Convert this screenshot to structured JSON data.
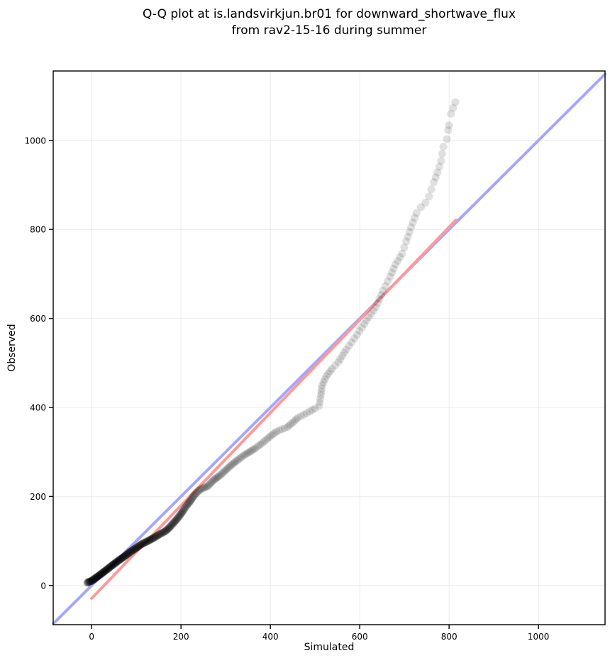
{
  "title": {
    "line1": "Q-Q plot at is.landsvirkjun.br01 for downward_shortwave_flux",
    "line2": "from rav2-15-16 during summer"
  },
  "chart_data": {
    "type": "scatter",
    "title": "Q-Q plot at is.landsvirkjun.br01 for downward_shortwave_flux from rav2-15-16 during summer",
    "xlabel": "Simulated",
    "ylabel": "Observed",
    "xlim": [
      -86,
      1149
    ],
    "ylim": [
      -88,
      1156
    ],
    "xticks": [
      0,
      200,
      400,
      600,
      800,
      1000
    ],
    "yticks": [
      0,
      200,
      400,
      600,
      800,
      1000
    ],
    "grid": true,
    "grid_color": "#ebebeb",
    "spine_color": "#000000",
    "legend": "none",
    "series": [
      {
        "name": "identity_line",
        "type": "line",
        "color": "#a6a6fa",
        "width": 4,
        "x": [
          -86,
          1149
        ],
        "y": [
          -86,
          1149
        ]
      },
      {
        "name": "fit_line",
        "type": "line",
        "color": "#fb9a9a",
        "width": 4,
        "x": [
          0,
          815
        ],
        "y": [
          -29,
          821
        ]
      },
      {
        "name": "qq_quantile_points",
        "type": "scatter",
        "color": "#000000",
        "point_alpha": 0.12,
        "point_radius": 5.5,
        "points": [
          [
            -10,
            6
          ],
          [
            -7,
            8
          ],
          [
            -3,
            9
          ],
          [
            1,
            11
          ],
          [
            5,
            14
          ],
          [
            12,
            19
          ],
          [
            20,
            25
          ],
          [
            33,
            35
          ],
          [
            47,
            46
          ],
          [
            60,
            56
          ],
          [
            73,
            65
          ],
          [
            86,
            75
          ],
          [
            99,
            84
          ],
          [
            112,
            93
          ],
          [
            126,
            100
          ],
          [
            139,
            107
          ],
          [
            152,
            115
          ],
          [
            165,
            122
          ],
          [
            174,
            130
          ],
          [
            181,
            138
          ],
          [
            190,
            148
          ],
          [
            197,
            157
          ],
          [
            203,
            165
          ],
          [
            208,
            173
          ],
          [
            213,
            180
          ],
          [
            218,
            186
          ],
          [
            224,
            194
          ],
          [
            229,
            202
          ],
          [
            236,
            209
          ],
          [
            242,
            215
          ],
          [
            252,
            220
          ],
          [
            260,
            223
          ],
          [
            273,
            237
          ],
          [
            287,
            247
          ],
          [
            300,
            259
          ],
          [
            313,
            271
          ],
          [
            327,
            282
          ],
          [
            340,
            292
          ],
          [
            353,
            300
          ],
          [
            366,
            308
          ],
          [
            378,
            317
          ],
          [
            390,
            327
          ],
          [
            402,
            337
          ],
          [
            414,
            346
          ],
          [
            426,
            351
          ],
          [
            438,
            356
          ],
          [
            450,
            366
          ],
          [
            462,
            377
          ],
          [
            475,
            384
          ],
          [
            488,
            391
          ],
          [
            500,
            398
          ],
          [
            509,
            403
          ],
          [
            513,
            428
          ],
          [
            516,
            450
          ],
          [
            525,
            470
          ],
          [
            538,
            487
          ],
          [
            552,
            502
          ],
          [
            570,
            530
          ],
          [
            588,
            555
          ],
          [
            605,
            580
          ],
          [
            620,
            603
          ],
          [
            636,
            625
          ],
          [
            652,
            662
          ],
          [
            668,
            694
          ],
          [
            680,
            721
          ],
          [
            695,
            746
          ],
          [
            704,
            773
          ],
          [
            715,
            805
          ],
          [
            727,
            837
          ],
          [
            737,
            850
          ],
          [
            747,
            860
          ],
          [
            755,
            874
          ],
          [
            760,
            890
          ],
          [
            766,
            906
          ],
          [
            774,
            928
          ],
          [
            782,
            954
          ],
          [
            787,
            986
          ],
          [
            795,
            1003
          ],
          [
            798,
            1023
          ],
          [
            800,
            1034
          ],
          [
            804,
            1060
          ],
          [
            814,
            1086
          ]
        ]
      }
    ]
  }
}
